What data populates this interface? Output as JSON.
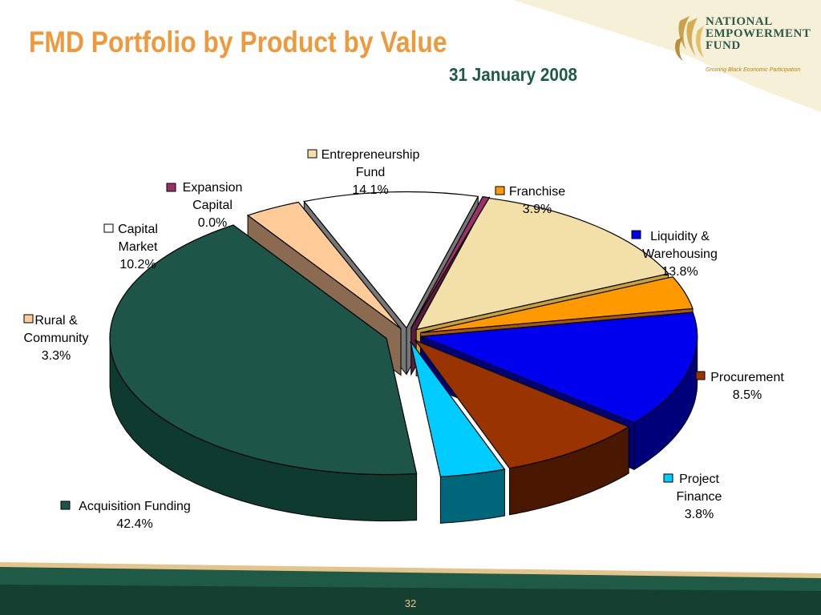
{
  "slide": {
    "title": "FMD Portfolio by Product by Value",
    "subtitle": "31 January 2008",
    "page_number": "32",
    "logo": {
      "line1": "NATIONAL",
      "line2": "EMPOWERMENT",
      "line3": "FUND",
      "tagline": "Growing Black Economic Participation"
    }
  },
  "chart_data": {
    "type": "pie",
    "title": "FMD Portfolio by Product by Value",
    "subtitle": "31 January 2008",
    "categories": [
      "Entrepreneurship Fund",
      "Franchise",
      "Liquidity & Warehousing",
      "Procurement",
      "Project Finance",
      "Acquisition Funding",
      "Rural & Community",
      "Capital Market",
      "Expansion Capital"
    ],
    "values": [
      14.1,
      3.9,
      13.8,
      8.5,
      3.8,
      42.4,
      3.3,
      10.2,
      0.0
    ],
    "value_labels": [
      "14.1%",
      "3.9%",
      "13.8%",
      "8.5%",
      "3.8%",
      "42.4%",
      "3.3%",
      "10.2%",
      "0.0%"
    ],
    "label_lines": [
      [
        "Entrepreneurship",
        "Fund",
        "14.1%"
      ],
      [
        "Franchise",
        "3.9%"
      ],
      [
        "Liquidity &",
        "Warehousing",
        "13.8%"
      ],
      [
        "Procurement",
        "8.5%"
      ],
      [
        "Project",
        "Finance",
        "3.8%"
      ],
      [
        "Acquisition Funding",
        "42.4%"
      ],
      [
        "Rural &",
        "Community",
        "3.3%"
      ],
      [
        "Capital",
        "Market",
        "10.2%"
      ],
      [
        "Expansion",
        "Capital",
        "0.0%"
      ]
    ],
    "colors": [
      "#F2E0A8",
      "#FF9900",
      "#0000EE",
      "#993300",
      "#00CCFF",
      "#1E5549",
      "#FFCC99",
      "#FFFFFF",
      "#993366"
    ],
    "side_colors": [
      "#C8A236",
      "#A85A00",
      "#00007A",
      "#4A1800",
      "#00667A",
      "#0E3A30",
      "#8A6A50",
      "#777777",
      "#5A1E3C"
    ],
    "exploded": true,
    "style": "3d"
  }
}
